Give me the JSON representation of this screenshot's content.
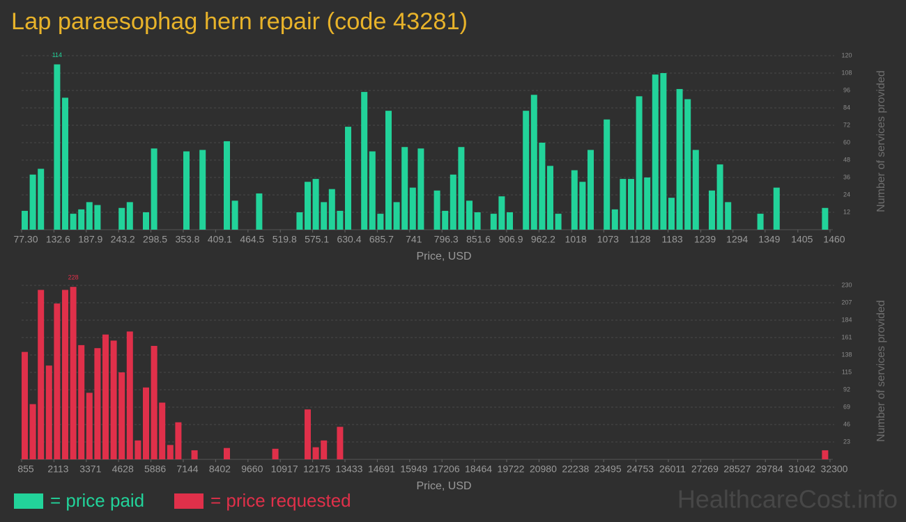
{
  "title": "Lap paraesophag hern repair (code 43281)",
  "watermark": "HealthcareCost.info",
  "chart_data": [
    {
      "type": "histogram",
      "xlabel": "Price, USD",
      "ylabel": "Number of services provided",
      "bins": [
        77.3,
        91.13,
        104.95,
        118.78,
        132.61,
        146.44,
        160.26,
        174.09,
        187.92,
        201.74,
        215.57,
        229.4,
        243.22,
        257.05,
        270.88,
        284.71,
        298.53,
        312.36,
        326.19,
        340.01,
        353.84,
        367.67,
        381.5,
        395.32,
        409.15,
        422.98,
        436.8,
        450.63,
        464.46,
        478.28,
        492.11,
        505.94,
        519.76,
        533.59,
        547.42,
        561.25,
        575.07,
        588.9,
        602.73,
        616.55,
        630.38,
        644.21,
        658.03,
        671.86,
        685.69,
        699.52,
        713.34,
        727.17,
        741.0,
        754.82,
        768.65,
        782.48,
        796.3,
        810.13,
        823.96,
        837.78,
        851.61,
        865.44,
        879.27,
        893.09,
        906.92,
        920.75,
        934.57,
        948.4,
        962.23,
        976.05,
        989.88,
        1003.71,
        1017.54,
        1031.36,
        1045.19,
        1059.02,
        1072.84,
        1086.67,
        1100.5,
        1114.32,
        1128.15,
        1141.98,
        1155.8,
        1169.63,
        1183.46,
        1197.29,
        1211.11,
        1224.94,
        1238.77,
        1252.59,
        1266.42,
        1280.25,
        1294.07,
        1307.9,
        1321.73,
        1335.56,
        1349.38,
        1363.21,
        1377.04,
        1390.86,
        1404.69,
        1418.52,
        1432.34,
        1446.17,
        1460.0
      ],
      "series": [
        {
          "name": "= price paid",
          "color": "#22d39a",
          "values": [
            13,
            38,
            42,
            0,
            114,
            91,
            11,
            14,
            19,
            17,
            0,
            0,
            15,
            19,
            0,
            12,
            56,
            0,
            0,
            0,
            54,
            0,
            55,
            0,
            0,
            61,
            20,
            0,
            0,
            25,
            0,
            0,
            0,
            0,
            12,
            33,
            35,
            19,
            28,
            13,
            71,
            0,
            95,
            54,
            11,
            82,
            19,
            57,
            29,
            56,
            0,
            27,
            13,
            38,
            57,
            20,
            12,
            0,
            11,
            23,
            12,
            0,
            82,
            93,
            60,
            44,
            11,
            0,
            41,
            33,
            55,
            0,
            76,
            14,
            35,
            35,
            92,
            36,
            107,
            108,
            22,
            97,
            90,
            55,
            0,
            27,
            45,
            19,
            0,
            0,
            0,
            11,
            0,
            29,
            0,
            0,
            0,
            0,
            0,
            15
          ]
        }
      ],
      "xlim": [
        77.3,
        1460
      ],
      "xticks": [
        {
          "value": 77.3,
          "label": "77.30"
        },
        132.6,
        187.9,
        243.2,
        298.5,
        353.8,
        409.1,
        464.5,
        519.8,
        575.1,
        630.4,
        685.7,
        741,
        796.3,
        851.6,
        906.9,
        962.2,
        1018,
        1073,
        1128,
        1183,
        1239,
        1294,
        1349,
        1405,
        1460
      ],
      "ylim": [
        0,
        120
      ],
      "yticks": [
        12,
        24,
        36,
        48,
        60,
        72,
        84,
        96,
        108,
        120
      ],
      "grid": true
    },
    {
      "type": "histogram",
      "xlabel": "Price, USD",
      "ylabel": "Number of services provided",
      "bins": [
        855,
        1169,
        1484,
        1798,
        2113,
        2427,
        2742,
        3056,
        3371,
        3685,
        4000,
        4314,
        4628,
        4943,
        5257,
        5572,
        5886,
        6201,
        6515,
        6830,
        7144,
        7458,
        7773,
        8087,
        8402,
        8716,
        9031,
        9345,
        9660,
        9974,
        10289,
        10603,
        10917,
        11232,
        11546,
        11861,
        12175,
        12490,
        12804,
        13119,
        13433,
        13747,
        14062,
        14376,
        14691,
        15005,
        15320,
        15634,
        15949,
        16263,
        16578,
        16892,
        17206,
        17521,
        17835,
        18150,
        18464,
        18779,
        19093,
        19408,
        19722,
        20036,
        20351,
        20665,
        20980,
        21294,
        21609,
        21923,
        22238,
        22552,
        22867,
        23181,
        23495,
        23810,
        24124,
        24439,
        24753,
        25068,
        25382,
        25697,
        26011,
        26325,
        26640,
        26954,
        27269,
        27583,
        27898,
        28212,
        28527,
        28841,
        29156,
        29470,
        29784,
        30099,
        30413,
        30728,
        31042,
        31357,
        31671,
        31986,
        32300
      ],
      "series": [
        {
          "name": "= price requested",
          "color": "#e0304a",
          "values": [
            142,
            73,
            224,
            124,
            206,
            224,
            228,
            151,
            88,
            147,
            165,
            157,
            115,
            169,
            25,
            95,
            150,
            75,
            19,
            49,
            0,
            12,
            0,
            0,
            0,
            15,
            0,
            0,
            0,
            0,
            0,
            14,
            0,
            0,
            0,
            66,
            16,
            25,
            0,
            43,
            0,
            0,
            0,
            0,
            0,
            0,
            0,
            0,
            0,
            0,
            0,
            0,
            0,
            0,
            0,
            0,
            0,
            0,
            0,
            0,
            0,
            0,
            0,
            0,
            0,
            0,
            0,
            0,
            0,
            0,
            0,
            0,
            0,
            0,
            0,
            0,
            0,
            0,
            0,
            0,
            0,
            0,
            0,
            0,
            0,
            0,
            0,
            0,
            0,
            0,
            0,
            0,
            0,
            0,
            0,
            0,
            0,
            0,
            0,
            12
          ]
        }
      ],
      "xlim": [
        855,
        32300
      ],
      "xticks": [
        855,
        2113,
        3371,
        4628,
        5886,
        7144,
        8402,
        9660,
        10917,
        12175,
        13433,
        14691,
        15949,
        17206,
        18464,
        19722,
        20980,
        22238,
        23495,
        24753,
        26011,
        27269,
        28527,
        29784,
        31042,
        32300
      ],
      "ylim": [
        0,
        230
      ],
      "yticks": [
        23,
        46,
        69,
        92,
        115,
        138,
        161,
        184,
        207,
        230
      ],
      "grid": true
    }
  ]
}
